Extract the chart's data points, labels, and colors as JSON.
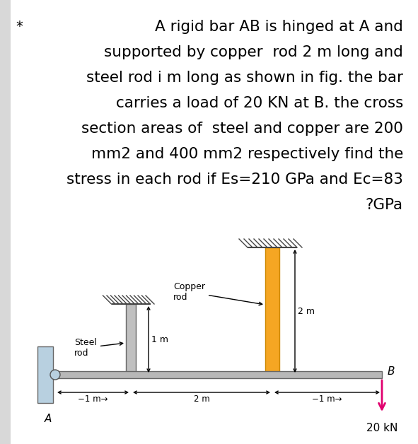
{
  "title_lines": [
    "A rigid bar AB is hinged at A and",
    "supported by copper  rod 2 m long and",
    "steel rod i m long as shown in fig. the bar",
    "carries a load of 20 KN at B. the cross",
    "section areas of  steel and copper are 200",
    "mm2 and 400 mm2 respectively find the",
    "stress in each rod if Es=210 GPa and Ec=83",
    "?GPa"
  ],
  "star_text": "*",
  "background_color": "#ffffff",
  "fig_width": 5.91,
  "fig_height": 6.28,
  "dpi": 100,
  "copper_color": "#f5a623",
  "steel_color": "#c0c0c0",
  "bar_color": "#b8b8b8",
  "load_color": "#e0006e",
  "load_label": "20 kN",
  "label_A": "A",
  "label_B": "B",
  "label_1m_vert": "1 m",
  "label_2m_vert": "2 m",
  "label_1m_horiz_left": "−1 m→",
  "label_2m_horiz": "2 m",
  "label_1m_horiz_right": "−1 m→",
  "label_steel": "Steel\nrod→",
  "label_copper": "Copper\nrod→"
}
